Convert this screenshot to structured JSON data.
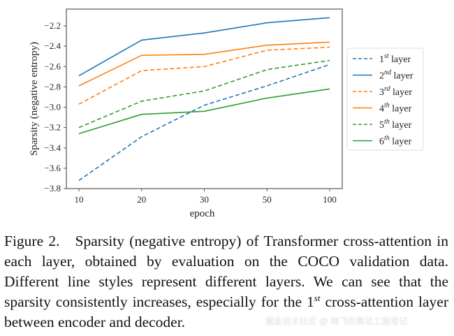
{
  "chart_data": {
    "type": "line",
    "title": "",
    "xlabel": "epoch",
    "ylabel": "Sparsity (negative entropy)",
    "categories": [
      "10",
      "20",
      "30",
      "50",
      "100"
    ],
    "x_tick_labels": [
      "10",
      "20",
      "30",
      "50",
      "100"
    ],
    "y_tick_labels": [
      "-3.8",
      "-3.6",
      "-3.4",
      "-3.2",
      "-3.0",
      "-2.8",
      "-2.6",
      "-2.4",
      "-2.2"
    ],
    "y_ticks": [
      -3.8,
      -3.6,
      -3.4,
      -3.2,
      -3.0,
      -2.8,
      -2.6,
      -2.4,
      -2.2
    ],
    "ylim": [
      -3.8,
      -2.07
    ],
    "grid": false,
    "legend_position": "right",
    "series": [
      {
        "name": "1st layer",
        "ordinal": "1",
        "suffix": "st",
        "label_rest": "layer",
        "color": "#1f77b4",
        "style": "dashed",
        "values": [
          -3.72,
          -3.29,
          -2.98,
          -2.79,
          -2.58
        ]
      },
      {
        "name": "2nd layer",
        "ordinal": "2",
        "suffix": "nd",
        "label_rest": "layer",
        "color": "#1f77b4",
        "style": "solid",
        "values": [
          -2.69,
          -2.34,
          -2.27,
          -2.17,
          -2.12
        ]
      },
      {
        "name": "3rd layer",
        "ordinal": "3",
        "suffix": "rd",
        "label_rest": "layer",
        "color": "#ff7f0e",
        "style": "dashed",
        "values": [
          -2.97,
          -2.64,
          -2.6,
          -2.44,
          -2.41
        ]
      },
      {
        "name": "4th layer",
        "ordinal": "4",
        "suffix": "th",
        "label_rest": "layer",
        "color": "#ff7f0e",
        "style": "solid",
        "values": [
          -2.79,
          -2.49,
          -2.48,
          -2.39,
          -2.36
        ]
      },
      {
        "name": "5th layer",
        "ordinal": "5",
        "suffix": "th",
        "label_rest": "layer",
        "color": "#2ca02c",
        "style": "dashed",
        "values": [
          -3.2,
          -2.94,
          -2.84,
          -2.63,
          -2.54
        ]
      },
      {
        "name": "6th layer",
        "ordinal": "6",
        "suffix": "th",
        "label_rest": "layer",
        "color": "#2ca02c",
        "style": "solid",
        "values": [
          -3.26,
          -3.07,
          -3.04,
          -2.91,
          -2.82
        ]
      }
    ]
  },
  "caption": {
    "label": "Figure 2.",
    "text_before_sup": "Sparsity (negative entropy) of Transformer cross-attention in each layer, obtained by evaluation on the COCO validation data. Different line styles represent different layers. We can see that the sparsity consistently increases, especially for the 1",
    "sup": "st",
    "text_after_sup": " cross-attention layer between encoder and decoder."
  },
  "watermark": "掘金技术社区 @ 晓飞的算法工程笔记"
}
